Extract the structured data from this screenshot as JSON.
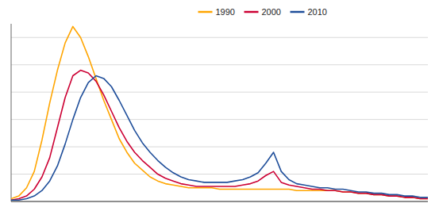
{
  "chart_data": {
    "type": "line",
    "x": [
      16,
      17,
      18,
      19,
      20,
      21,
      22,
      23,
      24,
      25,
      26,
      27,
      28,
      29,
      30,
      31,
      32,
      33,
      34,
      35,
      36,
      37,
      38,
      39,
      40,
      41,
      42,
      43,
      44,
      45,
      46,
      47,
      48,
      49,
      50,
      51,
      52,
      53,
      54,
      55,
      56,
      57,
      58,
      59,
      60,
      61,
      62,
      63,
      64,
      65,
      66,
      67,
      68,
      69,
      70
    ],
    "series": [
      {
        "name": "1990",
        "color": "#FFA500",
        "values": [
          2,
          4,
          10,
          22,
          45,
          72,
          96,
          116,
          128,
          120,
          106,
          90,
          74,
          60,
          46,
          36,
          28,
          23,
          18,
          15,
          13,
          12,
          11,
          10,
          10,
          10,
          10,
          9,
          9,
          9,
          9,
          9,
          9,
          9,
          9,
          9,
          9,
          8,
          8,
          8,
          8,
          8,
          8,
          7,
          7,
          6,
          6,
          5,
          5,
          4,
          4,
          3,
          3,
          2,
          2
        ]
      },
      {
        "name": "2000",
        "color": "#CC0033",
        "values": [
          1,
          2,
          4,
          9,
          18,
          32,
          54,
          76,
          92,
          96,
          94,
          88,
          78,
          66,
          54,
          44,
          36,
          30,
          25,
          20,
          17,
          15,
          13,
          12,
          11,
          11,
          11,
          11,
          11,
          11,
          12,
          13,
          15,
          19,
          22,
          14,
          12,
          11,
          10,
          9,
          9,
          8,
          8,
          7,
          7,
          6,
          6,
          5,
          5,
          4,
          4,
          3,
          3,
          2,
          2
        ]
      },
      {
        "name": "2010",
        "color": "#1F4E9A",
        "values": [
          1,
          1,
          2,
          4,
          8,
          15,
          26,
          42,
          60,
          76,
          87,
          92,
          90,
          84,
          74,
          63,
          52,
          43,
          36,
          30,
          25,
          21,
          18,
          16,
          15,
          14,
          14,
          14,
          14,
          15,
          16,
          18,
          21,
          28,
          36,
          22,
          16,
          13,
          12,
          11,
          10,
          10,
          9,
          9,
          8,
          7,
          7,
          6,
          6,
          5,
          5,
          4,
          4,
          3,
          3
        ]
      }
    ],
    "xlim": [
      16,
      70
    ],
    "ylim": [
      0,
      130
    ],
    "yticks": [
      0,
      20,
      40,
      60,
      80,
      100,
      120
    ],
    "grid": true,
    "legend": "top",
    "tick_labels": false
  }
}
